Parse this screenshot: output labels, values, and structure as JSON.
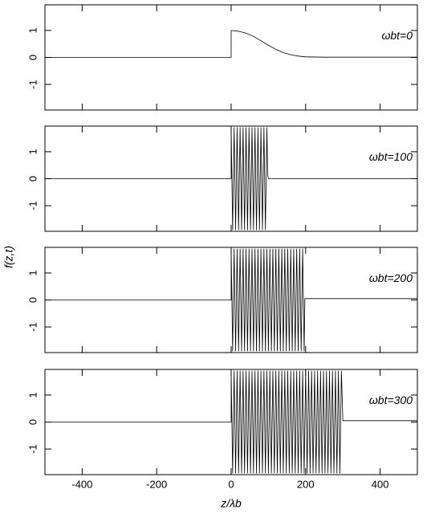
{
  "x_label": "z/λb",
  "y_label": "f(z,t)",
  "chart_data": [
    {
      "type": "line",
      "annotation": "ωbt=0",
      "xlim": [
        -500,
        500
      ],
      "xticks": [
        -400,
        -200,
        0,
        200,
        400
      ],
      "ylim": [
        -1.95,
        1.95
      ],
      "yticks": [
        -1,
        0,
        1
      ],
      "x": [
        -500,
        0,
        0,
        20,
        40,
        60,
        80,
        100,
        120,
        140,
        160,
        180,
        200,
        250,
        500
      ],
      "series": [
        {
          "color": "#000000",
          "values": [
            0,
            0,
            1,
            0.97,
            0.9,
            0.78,
            0.62,
            0.45,
            0.3,
            0.18,
            0.1,
            0.05,
            0.02,
            0.01,
            0.01
          ]
        }
      ]
    },
    {
      "type": "line",
      "annotation": "ωbt=100",
      "xlim": [
        -500,
        500
      ],
      "xticks": [
        -400,
        -200,
        0,
        200,
        400
      ],
      "ylim": [
        -1.95,
        1.95
      ],
      "yticks": [
        -1,
        0,
        1
      ],
      "x": [
        -500,
        0,
        0,
        4,
        8,
        12,
        16,
        20,
        24,
        28,
        32,
        36,
        40,
        44,
        48,
        52,
        56,
        60,
        64,
        68,
        72,
        76,
        80,
        84,
        88,
        92,
        96,
        98,
        100,
        500
      ],
      "series": [
        {
          "color": "#000000",
          "values": [
            0,
            0,
            1.9,
            -1.9,
            1.9,
            -1.9,
            1.9,
            -1.9,
            1.9,
            -1.9,
            1.9,
            -1.9,
            1.9,
            -1.9,
            1.9,
            -1.9,
            1.9,
            -1.9,
            1.9,
            -1.9,
            1.9,
            -1.9,
            1.9,
            -1.9,
            1.9,
            -1.9,
            1.9,
            0.15,
            0,
            0
          ]
        }
      ]
    },
    {
      "type": "line",
      "annotation": "ωbt=200",
      "xlim": [
        -500,
        500
      ],
      "xticks": [
        -400,
        -200,
        0,
        200,
        400
      ],
      "ylim": [
        -1.95,
        1.95
      ],
      "yticks": [
        -1,
        0,
        1
      ],
      "x": [
        -500,
        0,
        0,
        4,
        8,
        12,
        16,
        20,
        24,
        28,
        32,
        36,
        40,
        44,
        48,
        52,
        56,
        60,
        64,
        68,
        72,
        76,
        80,
        84,
        88,
        92,
        96,
        100,
        104,
        108,
        112,
        116,
        120,
        124,
        128,
        132,
        136,
        140,
        144,
        148,
        152,
        156,
        160,
        164,
        168,
        172,
        176,
        180,
        184,
        188,
        192,
        196,
        198,
        500
      ],
      "series": [
        {
          "color": "#000000",
          "values": [
            0,
            0,
            1.9,
            -1.9,
            1.9,
            -1.9,
            1.9,
            -1.9,
            1.9,
            -1.9,
            1.9,
            -1.9,
            1.9,
            -1.9,
            1.9,
            -1.9,
            1.9,
            -1.9,
            1.9,
            -1.9,
            1.9,
            -1.9,
            1.9,
            -1.9,
            1.9,
            -1.9,
            1.9,
            -1.9,
            1.9,
            -1.9,
            1.9,
            -1.9,
            1.9,
            -1.9,
            1.9,
            -1.9,
            1.9,
            -1.9,
            1.9,
            -1.9,
            1.9,
            -1.9,
            1.9,
            -1.9,
            1.9,
            -1.9,
            1.9,
            -1.9,
            1.9,
            -1.9,
            1.9,
            -1.9,
            0.05,
            0.05
          ]
        }
      ]
    },
    {
      "type": "line",
      "annotation": "ωbt=300",
      "xlim": [
        -500,
        500
      ],
      "xticks": [
        -400,
        -200,
        0,
        200,
        400
      ],
      "ylim": [
        -1.95,
        1.95
      ],
      "yticks": [
        -1,
        0,
        1
      ],
      "x": [
        -500,
        0,
        0,
        4,
        8,
        12,
        16,
        20,
        24,
        28,
        32,
        36,
        40,
        44,
        48,
        52,
        56,
        60,
        64,
        68,
        72,
        76,
        80,
        84,
        88,
        92,
        96,
        100,
        104,
        108,
        112,
        116,
        120,
        124,
        128,
        132,
        136,
        140,
        144,
        148,
        152,
        156,
        160,
        164,
        168,
        172,
        176,
        180,
        184,
        188,
        192,
        196,
        200,
        204,
        208,
        212,
        216,
        220,
        224,
        228,
        232,
        236,
        240,
        244,
        248,
        252,
        256,
        260,
        264,
        268,
        272,
        276,
        280,
        284,
        288,
        292,
        296,
        300,
        500
      ],
      "series": [
        {
          "color": "#000000",
          "values": [
            0,
            0,
            1.9,
            -1.9,
            1.9,
            -1.9,
            1.9,
            -1.9,
            1.9,
            -1.9,
            1.9,
            -1.9,
            1.9,
            -1.9,
            1.9,
            -1.9,
            1.9,
            -1.9,
            1.9,
            -1.9,
            1.9,
            -1.9,
            1.9,
            -1.9,
            1.9,
            -1.9,
            1.9,
            -1.9,
            1.9,
            -1.9,
            1.9,
            -1.9,
            1.9,
            -1.9,
            1.9,
            -1.9,
            1.9,
            -1.9,
            1.9,
            -1.9,
            1.9,
            -1.9,
            1.9,
            -1.9,
            1.9,
            -1.9,
            1.9,
            -1.9,
            1.9,
            -1.9,
            1.9,
            -1.9,
            1.9,
            -1.9,
            1.9,
            -1.9,
            1.9,
            -1.9,
            1.9,
            -1.9,
            1.9,
            -1.9,
            1.9,
            -1.9,
            1.9,
            -1.9,
            1.9,
            -1.9,
            1.9,
            -1.9,
            1.9,
            -1.9,
            1.9,
            -1.9,
            1.9,
            -1.9,
            1.9,
            0.05,
            0.05
          ]
        }
      ]
    }
  ]
}
